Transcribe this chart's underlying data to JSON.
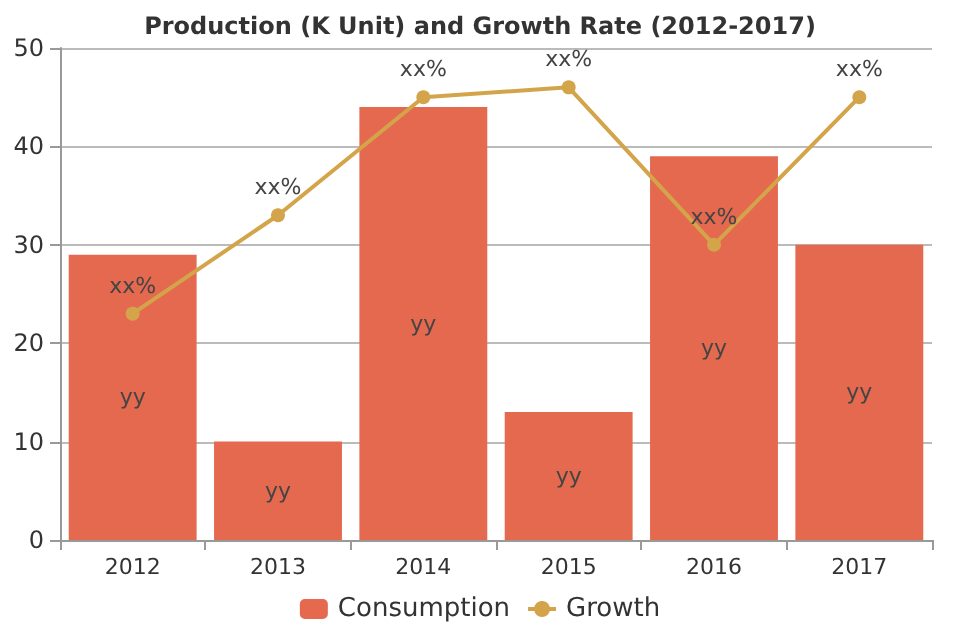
{
  "chart_data": {
    "type": "bar",
    "title": "Production (K Unit) and Growth Rate (2012-2017)",
    "categories": [
      "2012",
      "2013",
      "2014",
      "2015",
      "2016",
      "2017"
    ],
    "series": [
      {
        "name": "Consumption",
        "color": "#e5694f",
        "values": [
          29,
          10,
          44,
          13,
          39,
          30
        ],
        "value_labels": [
          "yy",
          "yy",
          "yy",
          "yy",
          "yy",
          "yy"
        ]
      },
      {
        "name": "Growth",
        "type": "line",
        "color": "#d4a44a",
        "values": [
          23,
          33,
          45,
          46,
          30,
          45
        ],
        "value_labels": [
          "xx%",
          "xx%",
          "xx%",
          "xx%",
          "xx%",
          "xx%"
        ]
      }
    ],
    "ylim": [
      0,
      50
    ],
    "yticks": [
      0,
      10,
      20,
      30,
      40,
      50
    ],
    "grid": "y",
    "legend": "bottom",
    "marker": "circle"
  }
}
